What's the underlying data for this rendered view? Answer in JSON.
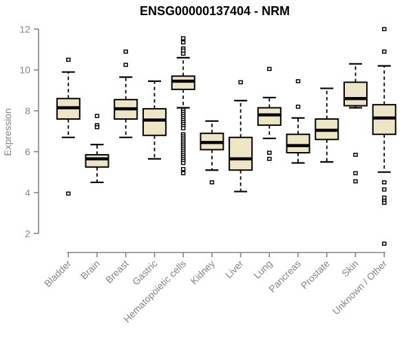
{
  "chart_data": {
    "type": "boxplot",
    "title": "ENSG00000137404 - NRM",
    "ylabel": "Expression",
    "xlabel": "",
    "ylim": [
      2,
      12
    ],
    "yticks": [
      2,
      4,
      6,
      8,
      10,
      12
    ],
    "grid": false,
    "legend": "none",
    "axis_color": "#848484",
    "box_fill": "#EDE5C6",
    "box_stroke": "#000000",
    "median_color": "#000000",
    "categories": [
      "Bladder",
      "Brain",
      "Breast",
      "Gastric",
      "Hematopoietic cells",
      "Kidney",
      "Liver",
      "Lung",
      "Pancreas",
      "Prostate",
      "Skin",
      "Unknown / Other"
    ],
    "series": [
      {
        "name": "Bladder",
        "whisker_low": 6.7,
        "q1": 7.6,
        "median": 8.15,
        "q3": 8.6,
        "whisker_high": 9.9,
        "outliers": [
          10.5,
          3.95
        ]
      },
      {
        "name": "Brain",
        "whisker_low": 4.5,
        "q1": 5.25,
        "median": 5.65,
        "q3": 5.85,
        "whisker_high": 6.35,
        "outliers": [
          7.75,
          7.3,
          7.2
        ]
      },
      {
        "name": "Breast",
        "whisker_low": 6.7,
        "q1": 7.6,
        "median": 8.1,
        "q3": 8.55,
        "whisker_high": 9.65,
        "outliers": [
          10.9,
          10.25
        ]
      },
      {
        "name": "Gastric",
        "whisker_low": 5.65,
        "q1": 6.8,
        "median": 7.55,
        "q3": 8.1,
        "whisker_high": 9.45,
        "outliers": []
      },
      {
        "name": "Hematopoietic cells",
        "whisker_low": 8.15,
        "q1": 9.05,
        "median": 9.45,
        "q3": 9.7,
        "whisker_high": 10.6,
        "outliers": [
          11.55,
          11.35,
          11.05,
          10.95,
          10.8,
          8.05,
          7.95,
          7.85,
          7.75,
          7.65,
          7.55,
          7.45,
          7.35,
          7.25,
          7.15,
          6.85,
          6.75,
          6.65,
          6.55,
          6.45,
          6.35,
          6.25,
          6.15,
          6.05,
          5.95,
          5.85,
          5.75,
          5.65,
          5.55,
          5.45,
          5.15,
          4.95
        ]
      },
      {
        "name": "Kidney",
        "whisker_low": 5.1,
        "q1": 6.1,
        "median": 6.45,
        "q3": 6.9,
        "whisker_high": 7.5,
        "outliers": [
          4.5
        ]
      },
      {
        "name": "Liver",
        "whisker_low": 4.05,
        "q1": 5.1,
        "median": 5.65,
        "q3": 6.7,
        "whisker_high": 8.5,
        "outliers": [
          9.4
        ]
      },
      {
        "name": "Lung",
        "whisker_low": 6.65,
        "q1": 7.3,
        "median": 7.8,
        "q3": 8.15,
        "whisker_high": 8.65,
        "outliers": [
          10.05,
          5.95,
          5.65
        ]
      },
      {
        "name": "Pancreas",
        "whisker_low": 5.45,
        "q1": 5.95,
        "median": 6.3,
        "q3": 6.85,
        "whisker_high": 7.65,
        "outliers": [
          9.45,
          8.2
        ]
      },
      {
        "name": "Prostate",
        "whisker_low": 5.5,
        "q1": 6.6,
        "median": 7.05,
        "q3": 7.6,
        "whisker_high": 9.1,
        "outliers": []
      },
      {
        "name": "Skin",
        "whisker_low": 8.15,
        "q1": 8.25,
        "median": 8.6,
        "q3": 9.4,
        "whisker_high": 10.3,
        "outliers": [
          5.85,
          4.95,
          4.55
        ]
      },
      {
        "name": "Unknown / Other",
        "whisker_low": 5.0,
        "q1": 6.85,
        "median": 7.65,
        "q3": 8.3,
        "whisker_high": 10.2,
        "outliers": [
          12.0,
          10.9,
          4.5,
          4.15,
          3.75,
          3.6,
          3.5,
          1.5
        ]
      }
    ]
  }
}
